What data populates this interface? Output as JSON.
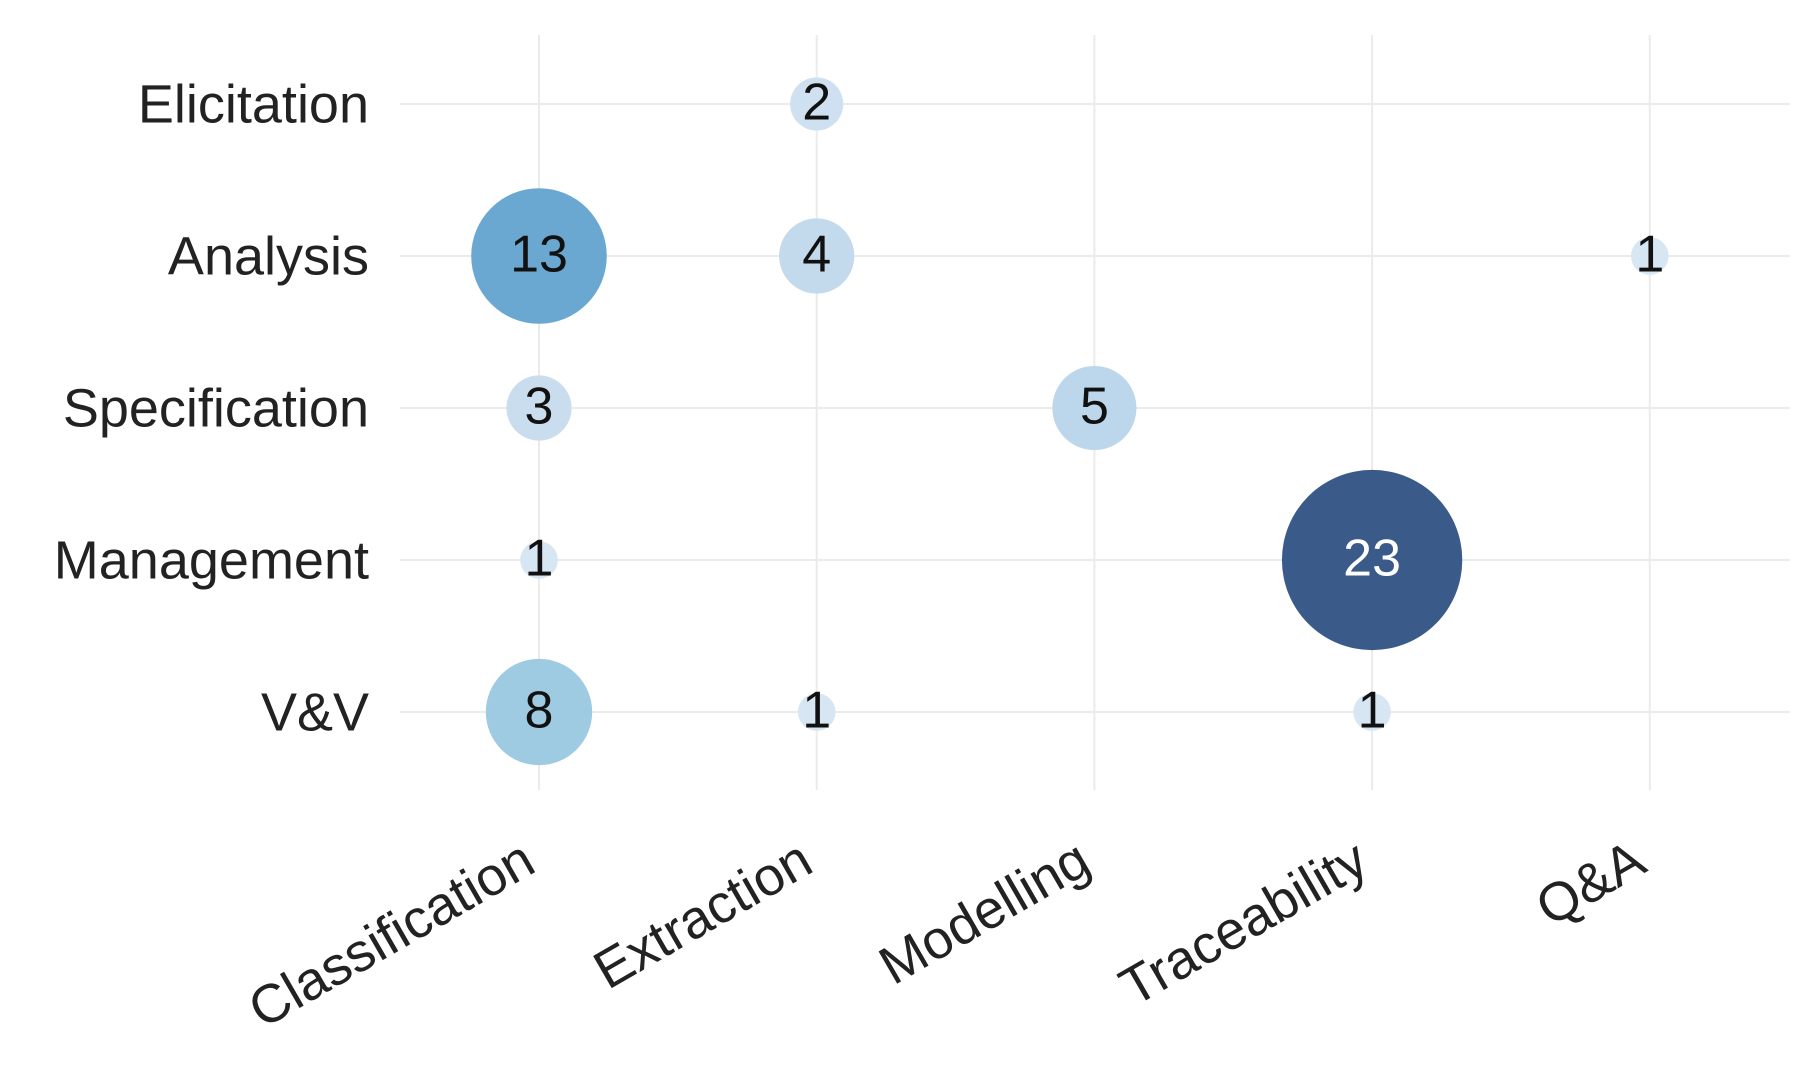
{
  "chart_data": {
    "type": "bubble",
    "x_categories": [
      "Classification",
      "Extraction",
      "Modelling",
      "Traceability",
      "Q&A"
    ],
    "y_categories": [
      "Elicitation",
      "Analysis",
      "Specification",
      "Management",
      "V&V"
    ],
    "points": [
      {
        "x": "Extraction",
        "y": "Elicitation",
        "value": 2,
        "color": "#cfe1f0"
      },
      {
        "x": "Classification",
        "y": "Analysis",
        "value": 13,
        "color": "#6aa8d2"
      },
      {
        "x": "Extraction",
        "y": "Analysis",
        "value": 4,
        "color": "#c3d9ec"
      },
      {
        "x": "Q&A",
        "y": "Analysis",
        "value": 1,
        "color": "#d6e6f3"
      },
      {
        "x": "Classification",
        "y": "Specification",
        "value": 3,
        "color": "#c9ddee"
      },
      {
        "x": "Modelling",
        "y": "Specification",
        "value": 5,
        "color": "#bcd6eb"
      },
      {
        "x": "Classification",
        "y": "Management",
        "value": 1,
        "color": "#d6e6f3"
      },
      {
        "x": "Traceability",
        "y": "Management",
        "value": 23,
        "color": "#3a5a8a"
      },
      {
        "x": "Classification",
        "y": "V&V",
        "value": 8,
        "color": "#9ecae2"
      },
      {
        "x": "Extraction",
        "y": "V&V",
        "value": 1,
        "color": "#d6e6f3"
      },
      {
        "x": "Traceability",
        "y": "V&V",
        "value": 1,
        "color": "#d6e6f3"
      }
    ],
    "grid": true
  }
}
